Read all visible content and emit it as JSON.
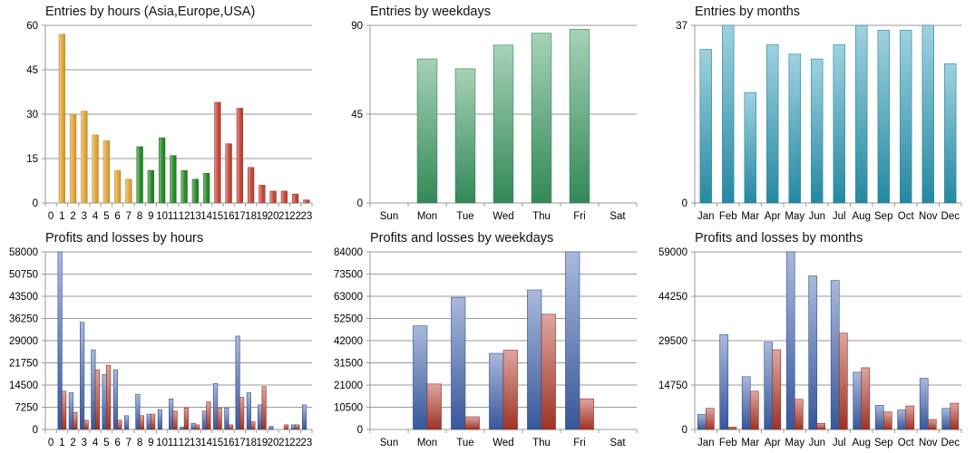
{
  "chart_data": [
    {
      "id": "hours",
      "type": "bar",
      "title": "Entries by hours (Asia,Europe,USA)",
      "categories": [
        "0",
        "1",
        "2",
        "3",
        "4",
        "5",
        "6",
        "7",
        "8",
        "9",
        "10",
        "11",
        "12",
        "13",
        "14",
        "15",
        "16",
        "17",
        "18",
        "19",
        "20",
        "21",
        "22",
        "23"
      ],
      "values": [
        0,
        57,
        30,
        31,
        23,
        21,
        11,
        8,
        19,
        11,
        22,
        16,
        11,
        8,
        10,
        34,
        20,
        32,
        12,
        6,
        4,
        4,
        3,
        1
      ],
      "bar_colors": [
        "#e0a53a",
        "#e0a53a",
        "#e0a53a",
        "#e0a53a",
        "#e0a53a",
        "#e0a53a",
        "#e0a53a",
        "#e0a53a",
        "#2a8a2a",
        "#2a8a2a",
        "#2a8a2a",
        "#2a8a2a",
        "#2a8a2a",
        "#2a8a2a",
        "#2a8a2a",
        "#c4473a",
        "#c4473a",
        "#c4473a",
        "#c4473a",
        "#c4473a",
        "#c4473a",
        "#c4473a",
        "#c4473a",
        "#c4473a"
      ],
      "ylim": [
        0,
        60
      ],
      "yticks": [
        "0",
        "15",
        "30",
        "45",
        "60"
      ],
      "grid": true
    },
    {
      "id": "weekdays",
      "type": "bar",
      "title": "Entries by weekdays",
      "categories": [
        "Sun",
        "Mon",
        "Tue",
        "Wed",
        "Thu",
        "Fri",
        "Sat"
      ],
      "values": [
        0,
        73,
        68,
        80,
        86,
        88,
        0
      ],
      "color": "#3a9a62",
      "ylim": [
        0,
        90
      ],
      "yticks": [
        "0",
        "45",
        "90"
      ],
      "grid": true
    },
    {
      "id": "months",
      "type": "bar",
      "title": "Entries by months",
      "categories": [
        "Jan",
        "Feb",
        "Mar",
        "Apr",
        "May",
        "Jun",
        "Jul",
        "Aug",
        "Sep",
        "Oct",
        "Nov",
        "Dec"
      ],
      "values": [
        32,
        37,
        23,
        33,
        31,
        30,
        33,
        37,
        36,
        36,
        37,
        29
      ],
      "color": "#2a9ab8",
      "ylim": [
        0,
        37
      ],
      "yticks": [
        "0",
        "37"
      ],
      "grid": true
    },
    {
      "id": "pl_hours",
      "type": "bar",
      "title": "Profits and losses by hours",
      "categories": [
        "0",
        "1",
        "2",
        "3",
        "4",
        "5",
        "6",
        "7",
        "8",
        "9",
        "10",
        "11",
        "12",
        "13",
        "14",
        "15",
        "16",
        "17",
        "18",
        "19",
        "20",
        "21",
        "22",
        "23"
      ],
      "series": [
        {
          "color": "#3f63b0",
          "values": [
            0,
            58000,
            12000,
            35000,
            26000,
            18000,
            19500,
            4500,
            11500,
            5000,
            6500,
            10000,
            800,
            2000,
            6000,
            15000,
            7000,
            30500,
            12000,
            8000,
            1000,
            0,
            1500,
            8000
          ]
        },
        {
          "color": "#b33a2a",
          "values": [
            0,
            12500,
            5500,
            3000,
            19500,
            21000,
            3000,
            0,
            4500,
            5000,
            0,
            6000,
            7000,
            1500,
            9000,
            7000,
            1500,
            10500,
            2500,
            14000,
            0,
            1500,
            1500,
            0
          ]
        }
      ],
      "ylim": [
        0,
        58000
      ],
      "yticks": [
        "0",
        "7250",
        "14500",
        "21750",
        "29000",
        "36250",
        "43500",
        "50750",
        "58000"
      ],
      "grid": true
    },
    {
      "id": "pl_weekdays",
      "type": "bar",
      "title": "Profits and losses by weekdays",
      "categories": [
        "Sun",
        "Mon",
        "Tue",
        "Wed",
        "Thu",
        "Fri",
        "Sat"
      ],
      "series": [
        {
          "color": "#3f63b0",
          "values": [
            0,
            49000,
            62500,
            36000,
            66000,
            84000,
            0
          ]
        },
        {
          "color": "#b33a2a",
          "values": [
            0,
            21500,
            6000,
            37500,
            54500,
            14500,
            0
          ]
        }
      ],
      "ylim": [
        0,
        84000
      ],
      "yticks": [
        "0",
        "10500",
        "21000",
        "31500",
        "42000",
        "52500",
        "63000",
        "73500",
        "84000"
      ],
      "grid": true
    },
    {
      "id": "pl_months",
      "type": "bar",
      "title": "Profits and losses by months",
      "categories": [
        "Jan",
        "Feb",
        "Mar",
        "Apr",
        "May",
        "Jun",
        "Jul",
        "Aug",
        "Sep",
        "Oct",
        "Nov",
        "Dec"
      ],
      "series": [
        {
          "color": "#3f63b0",
          "values": [
            5000,
            31500,
            17500,
            29000,
            59000,
            51000,
            49500,
            19000,
            8000,
            6500,
            17000,
            7000
          ]
        },
        {
          "color": "#b33a2a",
          "values": [
            7000,
            800,
            12700,
            26500,
            10000,
            2000,
            32000,
            20500,
            5800,
            7800,
            3300,
            8700
          ]
        }
      ],
      "ylim": [
        0,
        59000
      ],
      "yticks": [
        "0",
        "14750",
        "29500",
        "44250",
        "59000"
      ],
      "grid": true
    }
  ]
}
